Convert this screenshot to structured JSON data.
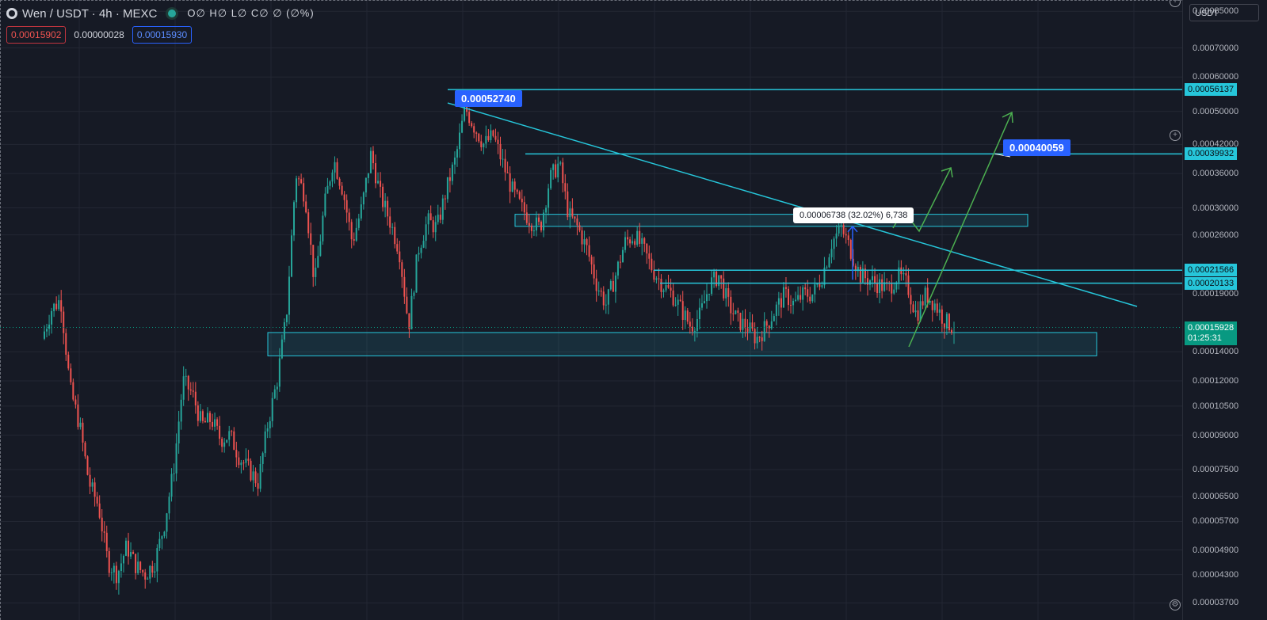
{
  "header": {
    "symbol": "Wen / USDT · 4h · MEXC",
    "ohlc": "O∅ H∅ L∅ C∅ ∅ (∅%)",
    "sell_price": "0.00015902",
    "spread": "0.00000028",
    "buy_price": "0.00015930"
  },
  "axis": {
    "currency": "USDT",
    "ticks": [
      "0.00085000",
      "0.00070000",
      "0.00060000",
      "0.00050000",
      "0.00042000",
      "0.00036000",
      "0.00030000",
      "0.00026000",
      "0.00019000",
      "0.00014000",
      "0.00012000",
      "0.00010500",
      "0.00009000",
      "0.00007500",
      "0.00006500",
      "0.00005700",
      "0.00004900",
      "0.00004300",
      "0.00003700"
    ],
    "line_labels": [
      "0.00056137",
      "0.00039932",
      "0.00021566",
      "0.00020133"
    ],
    "last_price": "0.00015928",
    "countdown": "01:25:31"
  },
  "annotations": {
    "high_callout": "0.00052740",
    "target_callout": "0.00040059",
    "measure": "0.00006738 (32.02%) 6,738"
  },
  "colors": {
    "background": "#161a25",
    "up_candle": "#26a69a",
    "down_candle": "#ef5350",
    "level_line": "#26c6da",
    "projection": "#4caf50",
    "callout": "#2962ff"
  },
  "chart_data": {
    "type": "candlestick",
    "symbol": "Wen / USDT",
    "interval": "4h",
    "exchange": "MEXC",
    "y_scale": "log",
    "ylim": [
      3.6e-05,
      0.00088
    ],
    "last_price": 0.00015928,
    "path": [
      [
        0.00015,
        0.000175
      ],
      [
        0.000185,
        0.000115
      ],
      [
        9.5e-05,
        7e-05
      ],
      [
        6.2e-05,
        4.6e-05
      ],
      [
        4.3e-05,
        5e-05
      ],
      [
        4.5e-05,
        4.3e-05
      ],
      [
        4.6e-05,
        5.6e-05
      ],
      [
        7.5e-05,
        0.00012
      ],
      [
        0.000112,
        9.5e-05
      ],
      [
        9.8e-05,
        8.8e-05
      ],
      [
        9e-05,
        8e-05
      ],
      [
        7.5e-05,
        7e-05
      ],
      [
        9.5e-05,
        0.00012
      ],
      [
        0.00017,
        0.00036
      ],
      [
        0.00032,
        0.0002
      ],
      [
        0.0003,
        0.00039
      ],
      [
        0.00033,
        0.00025
      ],
      [
        0.0003,
        0.0004
      ],
      [
        0.00032,
        0.00028
      ],
      [
        0.00024,
        0.00016
      ],
      [
        0.00024,
        0.00028
      ],
      [
        0.00027,
        0.00033
      ],
      [
        0.00039,
        0.00051
      ],
      [
        0.00046,
        0.00042
      ],
      [
        0.00044,
        0.00038
      ],
      [
        0.00033,
        0.0003
      ],
      [
        0.00028,
        0.00027
      ],
      [
        0.00035,
        0.00038
      ],
      [
        0.00029,
        0.00027
      ],
      [
        0.00024,
        0.0002
      ],
      [
        0.00018,
        0.00021
      ],
      [
        0.00025,
        0.00026
      ],
      [
        0.00024,
        0.000215
      ],
      [
        0.0002,
        0.00019
      ],
      [
        0.000175,
        0.00016
      ],
      [
        0.00017,
        0.0002
      ],
      [
        0.00021,
        0.00018
      ],
      [
        0.000165,
        0.00016
      ],
      [
        0.00015,
        0.00016
      ],
      [
        0.000175,
        0.00019
      ],
      [
        0.00018,
        0.00019
      ],
      [
        0.00019,
        0.00021
      ],
      [
        0.00025,
        0.00027
      ],
      [
        0.00024,
        0.00021
      ],
      [
        0.000205,
        0.0002
      ],
      [
        0.000195,
        0.00021
      ],
      [
        0.0002,
        0.00017
      ],
      [
        0.00019,
        0.00018
      ],
      [
        0.000165,
        0.000159
      ]
    ],
    "levels": [
      {
        "label": "0.00056137",
        "value": 0.00056137
      },
      {
        "label": "0.00039932",
        "value": 0.00039932
      },
      {
        "label": "0.00021566",
        "value": 0.00021566
      },
      {
        "label": "0.00020133",
        "value": 0.00020133
      }
    ],
    "zones": [
      {
        "low": 0.000272,
        "high": 0.00029
      },
      {
        "low": 0.000137,
        "high": 0.000155
      }
    ],
    "trendline": {
      "from": 0.0005274,
      "to": 0.000178
    },
    "callouts": [
      {
        "label": "0.00052740",
        "value": 0.0005274
      },
      {
        "label": "0.00040059",
        "value": 0.00040059
      }
    ],
    "measure": {
      "from": 0.000205,
      "to": 0.000272,
      "label": "0.00006738 (32.02%) 6,738"
    }
  }
}
